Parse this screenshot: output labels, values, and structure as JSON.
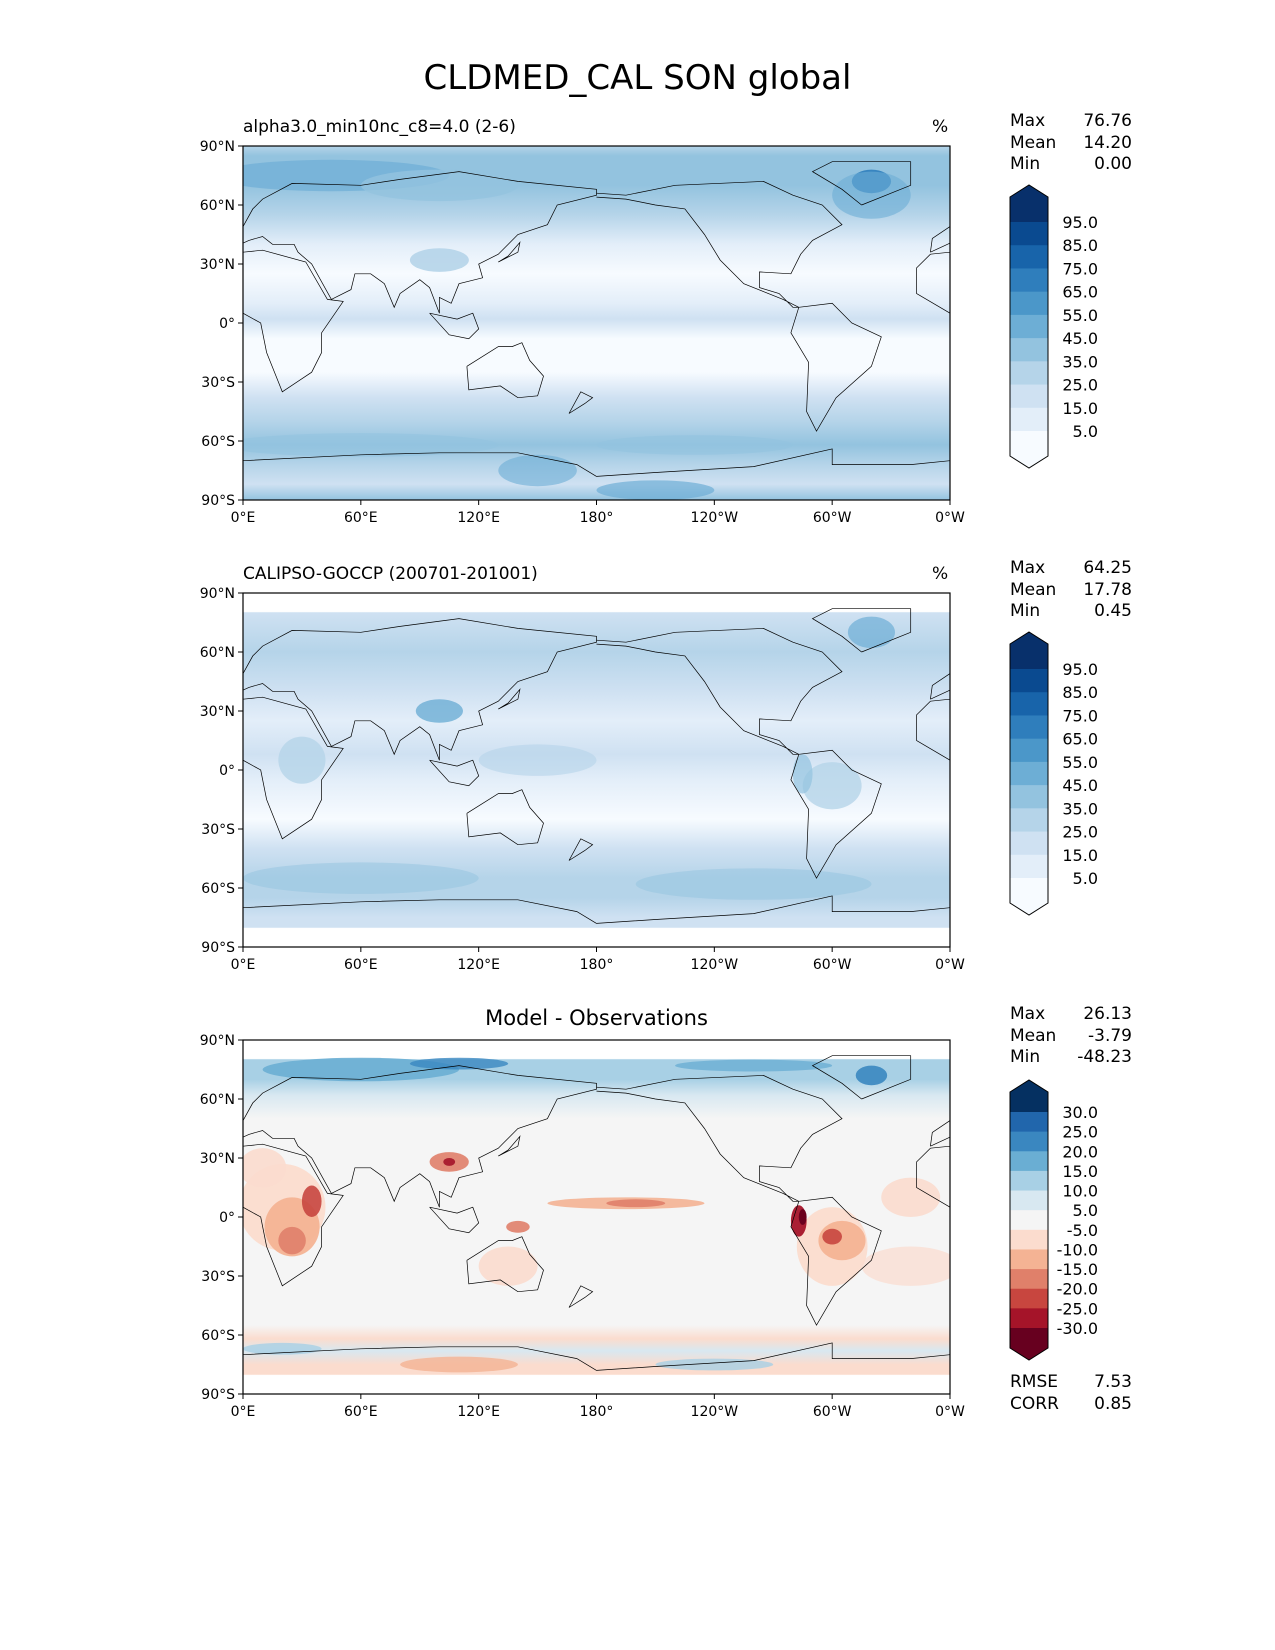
{
  "title": "CLDMED_CAL SON global",
  "lat_ticks": [
    "90°N",
    "60°N",
    "30°N",
    "0°",
    "30°S",
    "60°S",
    "90°S"
  ],
  "lon_ticks": [
    "0°E",
    "60°E",
    "120°E",
    "180°",
    "120°W",
    "60°W",
    "0°W"
  ],
  "panels": [
    {
      "title": "alpha3.0_min10nc_c8=4.0 (2-6)",
      "units": "%",
      "stats": [
        {
          "label": "Max",
          "value": "76.76"
        },
        {
          "label": "Mean",
          "value": "14.20"
        },
        {
          "label": "Min",
          "value": "0.00"
        }
      ],
      "colorbar": {
        "levels": [
          "95.0",
          "85.0",
          "75.0",
          "65.0",
          "55.0",
          "45.0",
          "35.0",
          "25.0",
          "15.0",
          "5.0"
        ],
        "colors": [
          "#08306b",
          "#0a4a90",
          "#1864aa",
          "#2f7ebc",
          "#4b97c9",
          "#6daed5",
          "#93c3df",
          "#b5d4e9",
          "#cfe1f2",
          "#e3eef9",
          "#f7fbff"
        ]
      }
    },
    {
      "title": "CALIPSO-GOCCP (200701-201001)",
      "units": "%",
      "stats": [
        {
          "label": "Max",
          "value": "64.25"
        },
        {
          "label": "Mean",
          "value": "17.78"
        },
        {
          "label": "Min",
          "value": "0.45"
        }
      ],
      "colorbar": {
        "levels": [
          "95.0",
          "85.0",
          "75.0",
          "65.0",
          "55.0",
          "45.0",
          "35.0",
          "25.0",
          "15.0",
          "5.0"
        ],
        "colors": [
          "#08306b",
          "#0a4a90",
          "#1864aa",
          "#2f7ebc",
          "#4b97c9",
          "#6daed5",
          "#93c3df",
          "#b5d4e9",
          "#cfe1f2",
          "#e3eef9",
          "#f7fbff"
        ]
      }
    },
    {
      "title": "Model - Observations",
      "units": "",
      "stats": [
        {
          "label": "Max",
          "value": "26.13"
        },
        {
          "label": "Mean",
          "value": "-3.79"
        },
        {
          "label": "Min",
          "value": "-48.23"
        }
      ],
      "colorbar": {
        "levels": [
          "30.0",
          "25.0",
          "20.0",
          "15.0",
          "10.0",
          "5.0",
          "-5.0",
          "-10.0",
          "-15.0",
          "-20.0",
          "-25.0",
          "-30.0"
        ],
        "colors": [
          "#053061",
          "#2166ac",
          "#3a87c0",
          "#6aaed3",
          "#a8d0e5",
          "#d8e8f1",
          "#f5f5f5",
          "#fbdcce",
          "#f4b394",
          "#e0806a",
          "#c8463f",
          "#a51429",
          "#67001f"
        ]
      },
      "metrics": [
        {
          "label": "RMSE",
          "value": "7.53"
        },
        {
          "label": "CORR",
          "value": "0.85"
        }
      ]
    }
  ]
}
